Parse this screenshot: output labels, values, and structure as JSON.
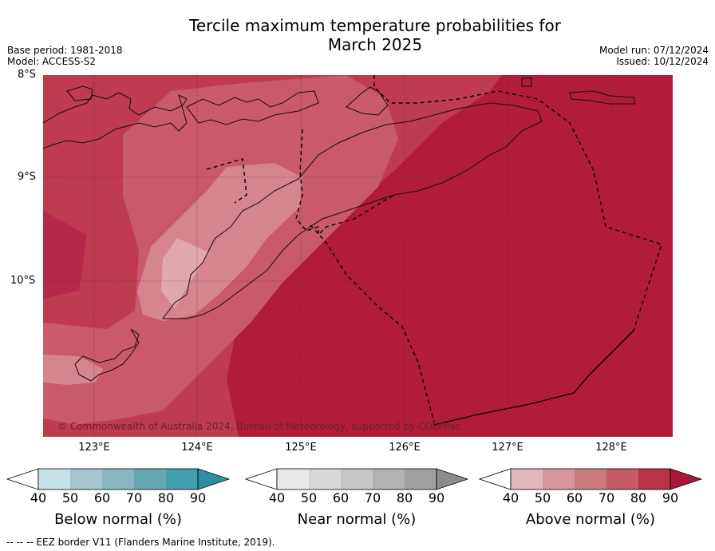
{
  "title": {
    "line1": "Tercile maximum temperature probabilities for",
    "line2": "March 2025"
  },
  "meta": {
    "base_period": "Base period: 1981-2018",
    "model": "Model: ACCESS-S2",
    "model_run": "Model run: 07/12/2024",
    "issued": "Issued: 10/12/2024"
  },
  "map": {
    "lat_labels": [
      "8°S",
      "9°S",
      "10°S"
    ],
    "lon_labels": [
      "123°E",
      "124°E",
      "125°E",
      "126°E",
      "127°E",
      "128°E"
    ],
    "copyright": "© Commonwealth of Australia 2024, Bureau of Meteorology, supported by COSPPac",
    "colors": {
      "above_90": "#b11c3b",
      "above_80": "#be3b50",
      "above_70": "#c85a6c",
      "above_60": "#d6848f",
      "above_50": "#e0a7ae"
    }
  },
  "colorbars": {
    "ticks": [
      "40",
      "50",
      "60",
      "70",
      "80",
      "90"
    ],
    "below": {
      "label": "Below normal (%)",
      "colors": [
        "#c5e0e6",
        "#a5c6cc",
        "#88b7c1",
        "#67a6b3",
        "#439ead",
        "#2d8fa3"
      ]
    },
    "near": {
      "label": "Near normal (%)",
      "colors": [
        "#e8e8e8",
        "#d7d7d7",
        "#c6c6c6",
        "#b2b2b2",
        "#a0a0a0",
        "#8c8c8c"
      ]
    },
    "above": {
      "label": "Above normal (%)",
      "colors": [
        "#e0b5bc",
        "#d6969e",
        "#cb7a82",
        "#c65b68",
        "#b83348",
        "#a9173a"
      ]
    }
  },
  "footer": "--  --  -- EEZ border V11 (Flanders Marine Institute, 2019)."
}
